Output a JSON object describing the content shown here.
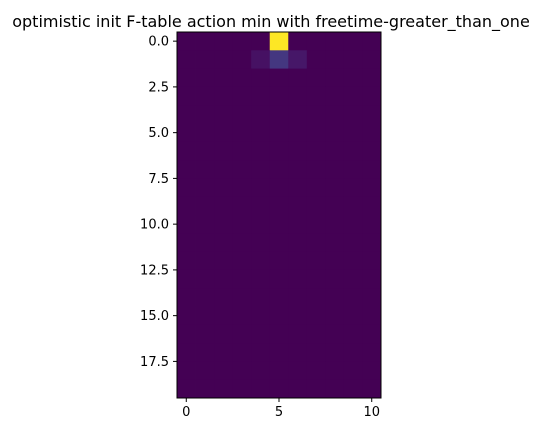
{
  "chart_data": {
    "type": "heatmap",
    "title": "optimistic init F-table action min with freetime-greater_than_one",
    "xlabel": "",
    "ylabel": "",
    "rows": 20,
    "cols": 11,
    "xlim": [
      -0.5,
      10.5
    ],
    "ylim": [
      19.5,
      -0.5
    ],
    "y_inverted": true,
    "x_ticks": [
      0,
      5,
      10
    ],
    "x_tick_labels": [
      "0",
      "5",
      "10"
    ],
    "y_ticks": [
      0,
      2.5,
      5,
      7.5,
      10,
      12.5,
      15,
      17.5
    ],
    "y_tick_labels": [
      "0.0",
      "2.5",
      "5.0",
      "7.5",
      "10.0",
      "12.5",
      "15.0",
      "17.5"
    ],
    "colormap": "viridis",
    "background_value": 0,
    "nonzero_cells": [
      {
        "row": 0,
        "col": 5,
        "value": 1.0
      },
      {
        "row": 1,
        "col": 4,
        "value": 0.06
      },
      {
        "row": 1,
        "col": 5,
        "value": 0.2
      },
      {
        "row": 1,
        "col": 6,
        "value": 0.08
      }
    ],
    "grid": false,
    "legend": false
  }
}
